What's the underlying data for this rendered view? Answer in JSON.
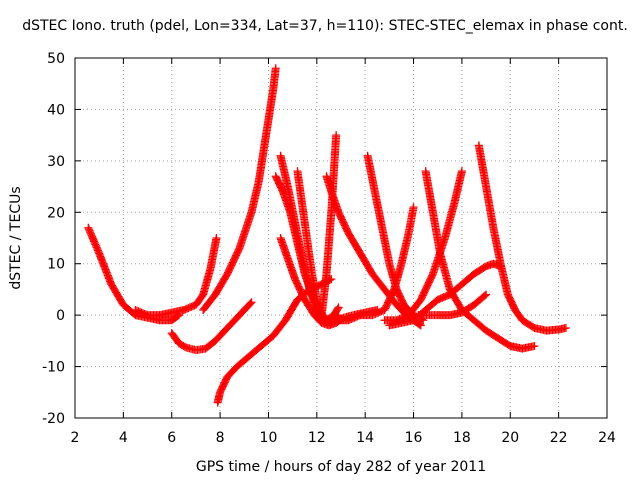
{
  "chart_data": {
    "type": "scatter",
    "title": "dSTEC Iono. truth (pdel, Lon=334, Lat=37, h=110): STEC-STEC_elemax in phase cont.",
    "xlabel": "GPS time / hours of day 282 of year 2011",
    "ylabel": "dSTEC  / TECUs",
    "xlim": [
      2,
      24
    ],
    "ylim": [
      -20,
      50
    ],
    "xticks": [
      2,
      4,
      6,
      8,
      10,
      12,
      14,
      16,
      18,
      20,
      22,
      24
    ],
    "yticks": [
      -20,
      -10,
      0,
      10,
      20,
      30,
      40,
      50
    ],
    "grid": true,
    "marker": "plus",
    "color": "#ff0000",
    "series": [
      {
        "x": [
          2.55,
          3.0,
          3.5,
          4.0,
          4.5,
          5.0,
          5.5,
          6.0,
          6.3
        ],
        "y": [
          17,
          12,
          6,
          2,
          0,
          -0.5,
          -1,
          -1,
          0
        ]
      },
      {
        "x": [
          4.5,
          5.0,
          5.5,
          6.0,
          6.5,
          7.0,
          7.3,
          7.6,
          7.85
        ],
        "y": [
          1,
          0,
          0,
          0.5,
          1,
          2,
          4,
          9,
          15
        ]
      },
      {
        "x": [
          6.0,
          6.3,
          6.6,
          7.0,
          7.4,
          7.8,
          8.2,
          8.6,
          9.0,
          9.3
        ],
        "y": [
          -3.5,
          -5.5,
          -6.3,
          -6.8,
          -6.5,
          -5,
          -3,
          -1,
          1,
          2.5
        ]
      },
      {
        "x": [
          7.9,
          8.0,
          8.3,
          8.7,
          9.2,
          9.7,
          10.2,
          10.7,
          11.2,
          11.7,
          12.2,
          12.6
        ],
        "y": [
          -17,
          -15,
          -12,
          -10,
          -8,
          -6,
          -4,
          -1,
          3,
          5,
          6,
          7
        ]
      },
      {
        "x": [
          7.3,
          7.8,
          8.3,
          8.8,
          9.3,
          9.6,
          9.8,
          10.0,
          10.2,
          10.3
        ],
        "y": [
          1,
          4,
          8,
          13,
          20,
          26,
          32,
          38,
          44,
          48
        ]
      },
      {
        "x": [
          10.5,
          10.8,
          11.1,
          11.4,
          11.7,
          12.0,
          12.3,
          12.6,
          12.9
        ],
        "y": [
          31,
          25,
          18,
          11,
          5,
          1,
          -1,
          -1.5,
          0
        ]
      },
      {
        "x": [
          10.5,
          10.8,
          11.1,
          11.5,
          11.9,
          12.2,
          12.5,
          12.8,
          13.1,
          13.5,
          14.0,
          14.5
        ],
        "y": [
          15,
          11,
          7,
          3,
          0,
          -1.5,
          -2,
          -1.5,
          -0.5,
          0,
          0.5,
          1
        ]
      },
      {
        "x": [
          10.3,
          10.6,
          10.9,
          11.2,
          11.5,
          11.8,
          12.1,
          12.4,
          12.7,
          12.9
        ],
        "y": [
          27,
          24,
          20,
          14,
          8,
          4,
          1,
          -1,
          0,
          1.5
        ]
      },
      {
        "x": [
          11.2,
          11.5,
          11.8,
          12.0,
          12.2,
          12.4,
          12.6,
          12.8
        ],
        "y": [
          28,
          18,
          8,
          3,
          0,
          8,
          20,
          35
        ]
      },
      {
        "x": [
          12.4,
          12.6,
          12.9,
          13.3,
          13.8,
          14.3,
          14.8,
          15.3,
          15.7,
          16.0,
          16.3
        ],
        "y": [
          27,
          24,
          20,
          16,
          12,
          8,
          5,
          2,
          0,
          -1,
          -2
        ]
      },
      {
        "x": [
          12.8,
          13.3,
          13.8,
          14.3,
          14.8,
          15.2,
          15.5,
          15.8,
          16.0
        ],
        "y": [
          -1,
          -1,
          0,
          0,
          1,
          5,
          10,
          16,
          21
        ]
      },
      {
        "x": [
          14.1,
          14.4,
          14.7,
          15.0,
          15.3,
          15.6,
          16.0,
          16.4
        ],
        "y": [
          31,
          24,
          17,
          10,
          5,
          2,
          0,
          -1
        ]
      },
      {
        "x": [
          14.8,
          15.3,
          15.8,
          16.3,
          16.8,
          17.3,
          17.7,
          18.0
        ],
        "y": [
          -1,
          -1,
          0,
          3,
          8,
          15,
          22,
          28
        ]
      },
      {
        "x": [
          15.0,
          15.5,
          16.0,
          16.5,
          17.0,
          17.5,
          18.0,
          18.5,
          19.0,
          19.3,
          19.6
        ],
        "y": [
          -2,
          -1.5,
          -1,
          1,
          3,
          4,
          6,
          8,
          9.5,
          10,
          9.5
        ]
      },
      {
        "x": [
          16.5,
          16.8,
          17.1,
          17.5,
          18.0,
          18.5,
          19.0,
          19.5,
          20.0,
          20.5,
          21.0
        ],
        "y": [
          28,
          20,
          12,
          5,
          1,
          -1,
          -3,
          -4.5,
          -6,
          -6.5,
          -6
        ]
      },
      {
        "x": [
          16.2,
          16.6,
          17.0,
          17.5,
          18.0,
          18.5,
          19.0
        ],
        "y": [
          0,
          0,
          0,
          0,
          0.5,
          2,
          4
        ]
      },
      {
        "x": [
          18.7,
          19.0,
          19.3,
          19.6,
          19.9,
          20.2,
          20.5,
          21.0,
          21.5,
          22.0,
          22.3
        ],
        "y": [
          33,
          25,
          17,
          10,
          4,
          1,
          -1,
          -2.5,
          -3,
          -2.8,
          -2.5
        ]
      }
    ]
  }
}
